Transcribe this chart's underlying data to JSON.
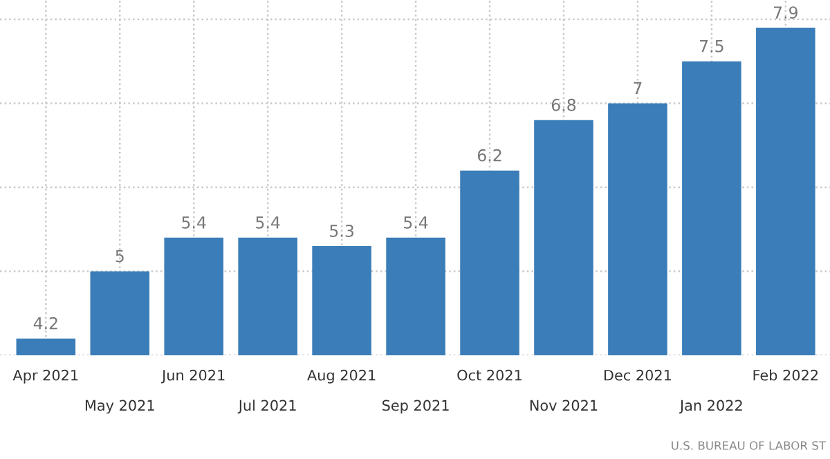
{
  "chart_data": {
    "type": "bar",
    "categories": [
      "Apr 2021",
      "May 2021",
      "Jun 2021",
      "Jul 2021",
      "Aug 2021",
      "Sep 2021",
      "Oct 2021",
      "Nov 2021",
      "Dec 2021",
      "Jan 2022",
      "Feb 2022"
    ],
    "values": [
      4.2,
      5,
      5.4,
      5.4,
      5.3,
      5.4,
      6.2,
      6.8,
      7,
      7.5,
      7.9
    ],
    "color": "#3a7db8",
    "ylim": [
      4,
      8.23
    ],
    "yticks": [
      {
        "value": 4,
        "label": null
      },
      {
        "value": 5,
        "label": null
      },
      {
        "value": 6,
        "label": null
      },
      {
        "value": 7,
        "label": null
      },
      {
        "value": 8,
        "label": null
      }
    ],
    "tick_labels": "x",
    "grid": true,
    "data_labels": true,
    "annotations": [
      "U.S. BUREAU OF LABOR ST"
    ]
  }
}
